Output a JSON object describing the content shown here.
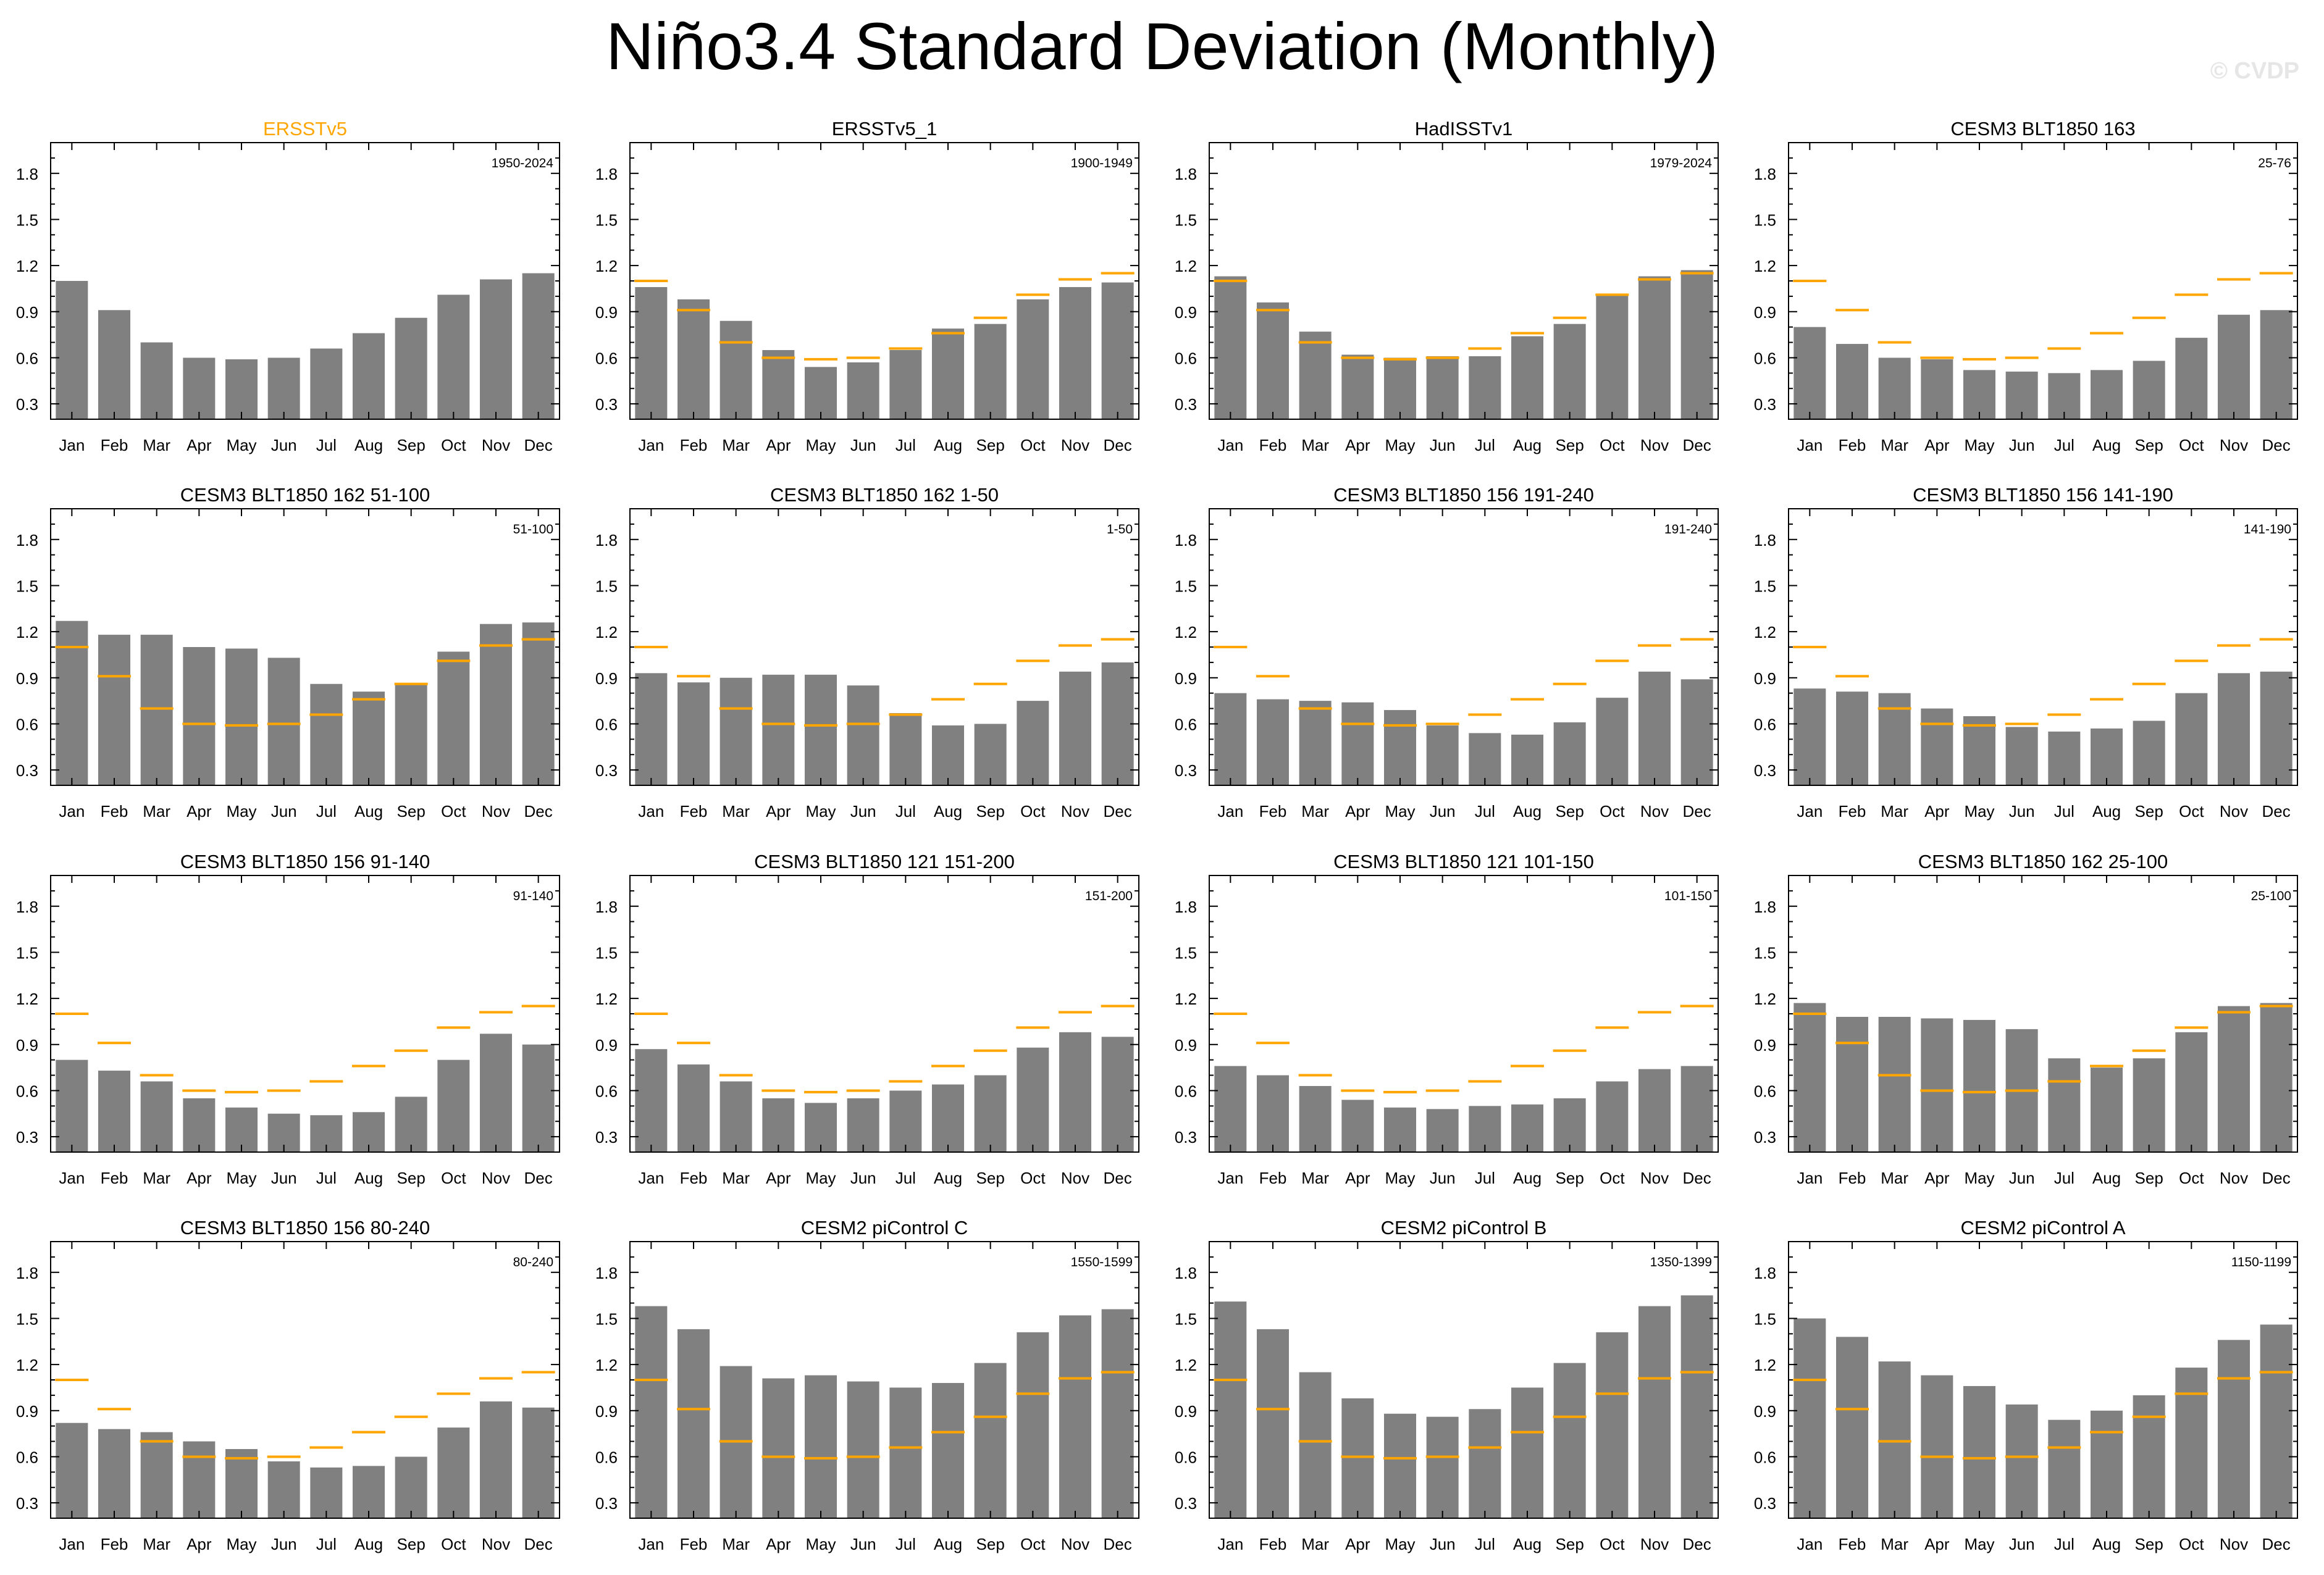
{
  "title": "Niño3.4 Standard Deviation (Monthly)",
  "watermark": "© CVDP",
  "colors": {
    "bar": "#808080",
    "reference_line": "#ffa500",
    "highlight_title": "#ffa500",
    "axis": "#000000"
  },
  "chart_data": [
    {
      "type": "bar",
      "title": "ERSSTv5",
      "title_highlight": true,
      "period": "1950-2024",
      "categories": [
        "Jan",
        "Feb",
        "Mar",
        "Apr",
        "May",
        "Jun",
        "Jul",
        "Aug",
        "Sep",
        "Oct",
        "Nov",
        "Dec"
      ],
      "yticks": [
        "0.3",
        "0.6",
        "0.9",
        "1.2",
        "1.5",
        "1.8"
      ],
      "ylim": [
        0.2,
        2.0
      ],
      "values": [
        1.1,
        0.91,
        0.7,
        0.6,
        0.59,
        0.6,
        0.66,
        0.76,
        0.86,
        1.01,
        1.11,
        1.15
      ],
      "reference": [
        1.1,
        0.91,
        0.7,
        0.6,
        0.59,
        0.6,
        0.66,
        0.76,
        0.86,
        1.01,
        1.11,
        1.15
      ],
      "show_reference": false
    },
    {
      "type": "bar",
      "title": "ERSSTv5_1",
      "title_highlight": false,
      "period": "1900-1949",
      "categories": [
        "Jan",
        "Feb",
        "Mar",
        "Apr",
        "May",
        "Jun",
        "Jul",
        "Aug",
        "Sep",
        "Oct",
        "Nov",
        "Dec"
      ],
      "yticks": [
        "0.3",
        "0.6",
        "0.9",
        "1.2",
        "1.5",
        "1.8"
      ],
      "ylim": [
        0.2,
        2.0
      ],
      "values": [
        1.06,
        0.98,
        0.84,
        0.65,
        0.54,
        0.57,
        0.65,
        0.79,
        0.82,
        0.98,
        1.06,
        1.09
      ],
      "reference": [
        1.1,
        0.91,
        0.7,
        0.6,
        0.59,
        0.6,
        0.66,
        0.76,
        0.86,
        1.01,
        1.11,
        1.15
      ],
      "show_reference": true
    },
    {
      "type": "bar",
      "title": "HadISSTv1",
      "title_highlight": false,
      "period": "1979-2024",
      "categories": [
        "Jan",
        "Feb",
        "Mar",
        "Apr",
        "May",
        "Jun",
        "Jul",
        "Aug",
        "Sep",
        "Oct",
        "Nov",
        "Dec"
      ],
      "yticks": [
        "0.3",
        "0.6",
        "0.9",
        "1.2",
        "1.5",
        "1.8"
      ],
      "ylim": [
        0.2,
        2.0
      ],
      "values": [
        1.13,
        0.96,
        0.77,
        0.62,
        0.6,
        0.61,
        0.61,
        0.74,
        0.82,
        1.01,
        1.13,
        1.17
      ],
      "reference": [
        1.1,
        0.91,
        0.7,
        0.6,
        0.59,
        0.6,
        0.66,
        0.76,
        0.86,
        1.01,
        1.11,
        1.15
      ],
      "show_reference": true
    },
    {
      "type": "bar",
      "title": "CESM3 BLT1850 163",
      "title_highlight": false,
      "period": "25-76",
      "categories": [
        "Jan",
        "Feb",
        "Mar",
        "Apr",
        "May",
        "Jun",
        "Jul",
        "Aug",
        "Sep",
        "Oct",
        "Nov",
        "Dec"
      ],
      "yticks": [
        "0.3",
        "0.6",
        "0.9",
        "1.2",
        "1.5",
        "1.8"
      ],
      "ylim": [
        0.2,
        2.0
      ],
      "values": [
        0.8,
        0.69,
        0.6,
        0.59,
        0.52,
        0.51,
        0.5,
        0.52,
        0.58,
        0.73,
        0.88,
        0.91
      ],
      "reference": [
        1.1,
        0.91,
        0.7,
        0.6,
        0.59,
        0.6,
        0.66,
        0.76,
        0.86,
        1.01,
        1.11,
        1.15
      ],
      "show_reference": true
    },
    {
      "type": "bar",
      "title": "CESM3 BLT1850 162 51-100",
      "title_highlight": false,
      "period": "51-100",
      "categories": [
        "Jan",
        "Feb",
        "Mar",
        "Apr",
        "May",
        "Jun",
        "Jul",
        "Aug",
        "Sep",
        "Oct",
        "Nov",
        "Dec"
      ],
      "yticks": [
        "0.3",
        "0.6",
        "0.9",
        "1.2",
        "1.5",
        "1.8"
      ],
      "ylim": [
        0.2,
        2.0
      ],
      "values": [
        1.27,
        1.18,
        1.18,
        1.1,
        1.09,
        1.03,
        0.86,
        0.81,
        0.86,
        1.07,
        1.25,
        1.26
      ],
      "reference": [
        1.1,
        0.91,
        0.7,
        0.6,
        0.59,
        0.6,
        0.66,
        0.76,
        0.86,
        1.01,
        1.11,
        1.15
      ],
      "show_reference": true
    },
    {
      "type": "bar",
      "title": "CESM3 BLT1850 162 1-50",
      "title_highlight": false,
      "period": "1-50",
      "categories": [
        "Jan",
        "Feb",
        "Mar",
        "Apr",
        "May",
        "Jun",
        "Jul",
        "Aug",
        "Sep",
        "Oct",
        "Nov",
        "Dec"
      ],
      "yticks": [
        "0.3",
        "0.6",
        "0.9",
        "1.2",
        "1.5",
        "1.8"
      ],
      "ylim": [
        0.2,
        2.0
      ],
      "values": [
        0.93,
        0.87,
        0.9,
        0.92,
        0.92,
        0.85,
        0.67,
        0.59,
        0.6,
        0.75,
        0.94,
        1.0
      ],
      "reference": [
        1.1,
        0.91,
        0.7,
        0.6,
        0.59,
        0.6,
        0.66,
        0.76,
        0.86,
        1.01,
        1.11,
        1.15
      ],
      "show_reference": true
    },
    {
      "type": "bar",
      "title": "CESM3 BLT1850 156 191-240",
      "title_highlight": false,
      "period": "191-240",
      "categories": [
        "Jan",
        "Feb",
        "Mar",
        "Apr",
        "May",
        "Jun",
        "Jul",
        "Aug",
        "Sep",
        "Oct",
        "Nov",
        "Dec"
      ],
      "yticks": [
        "0.3",
        "0.6",
        "0.9",
        "1.2",
        "1.5",
        "1.8"
      ],
      "ylim": [
        0.2,
        2.0
      ],
      "values": [
        0.8,
        0.76,
        0.75,
        0.74,
        0.69,
        0.59,
        0.54,
        0.53,
        0.61,
        0.77,
        0.94,
        0.89
      ],
      "reference": [
        1.1,
        0.91,
        0.7,
        0.6,
        0.59,
        0.6,
        0.66,
        0.76,
        0.86,
        1.01,
        1.11,
        1.15
      ],
      "show_reference": true
    },
    {
      "type": "bar",
      "title": "CESM3 BLT1850 156 141-190",
      "title_highlight": false,
      "period": "141-190",
      "categories": [
        "Jan",
        "Feb",
        "Mar",
        "Apr",
        "May",
        "Jun",
        "Jul",
        "Aug",
        "Sep",
        "Oct",
        "Nov",
        "Dec"
      ],
      "yticks": [
        "0.3",
        "0.6",
        "0.9",
        "1.2",
        "1.5",
        "1.8"
      ],
      "ylim": [
        0.2,
        2.0
      ],
      "values": [
        0.83,
        0.81,
        0.8,
        0.7,
        0.65,
        0.58,
        0.55,
        0.57,
        0.62,
        0.8,
        0.93,
        0.94
      ],
      "reference": [
        1.1,
        0.91,
        0.7,
        0.6,
        0.59,
        0.6,
        0.66,
        0.76,
        0.86,
        1.01,
        1.11,
        1.15
      ],
      "show_reference": true
    },
    {
      "type": "bar",
      "title": "CESM3 BLT1850 156 91-140",
      "title_highlight": false,
      "period": "91-140",
      "categories": [
        "Jan",
        "Feb",
        "Mar",
        "Apr",
        "May",
        "Jun",
        "Jul",
        "Aug",
        "Sep",
        "Oct",
        "Nov",
        "Dec"
      ],
      "yticks": [
        "0.3",
        "0.6",
        "0.9",
        "1.2",
        "1.5",
        "1.8"
      ],
      "ylim": [
        0.2,
        2.0
      ],
      "values": [
        0.8,
        0.73,
        0.66,
        0.55,
        0.49,
        0.45,
        0.44,
        0.46,
        0.56,
        0.8,
        0.97,
        0.9
      ],
      "reference": [
        1.1,
        0.91,
        0.7,
        0.6,
        0.59,
        0.6,
        0.66,
        0.76,
        0.86,
        1.01,
        1.11,
        1.15
      ],
      "show_reference": true
    },
    {
      "type": "bar",
      "title": "CESM3 BLT1850 121 151-200",
      "title_highlight": false,
      "period": "151-200",
      "categories": [
        "Jan",
        "Feb",
        "Mar",
        "Apr",
        "May",
        "Jun",
        "Jul",
        "Aug",
        "Sep",
        "Oct",
        "Nov",
        "Dec"
      ],
      "yticks": [
        "0.3",
        "0.6",
        "0.9",
        "1.2",
        "1.5",
        "1.8"
      ],
      "ylim": [
        0.2,
        2.0
      ],
      "values": [
        0.87,
        0.77,
        0.66,
        0.55,
        0.52,
        0.55,
        0.6,
        0.64,
        0.7,
        0.88,
        0.98,
        0.95
      ],
      "reference": [
        1.1,
        0.91,
        0.7,
        0.6,
        0.59,
        0.6,
        0.66,
        0.76,
        0.86,
        1.01,
        1.11,
        1.15
      ],
      "show_reference": true
    },
    {
      "type": "bar",
      "title": "CESM3 BLT1850 121 101-150",
      "title_highlight": false,
      "period": "101-150",
      "categories": [
        "Jan",
        "Feb",
        "Mar",
        "Apr",
        "May",
        "Jun",
        "Jul",
        "Aug",
        "Sep",
        "Oct",
        "Nov",
        "Dec"
      ],
      "yticks": [
        "0.3",
        "0.6",
        "0.9",
        "1.2",
        "1.5",
        "1.8"
      ],
      "ylim": [
        0.2,
        2.0
      ],
      "values": [
        0.76,
        0.7,
        0.63,
        0.54,
        0.49,
        0.48,
        0.5,
        0.51,
        0.55,
        0.66,
        0.74,
        0.76
      ],
      "reference": [
        1.1,
        0.91,
        0.7,
        0.6,
        0.59,
        0.6,
        0.66,
        0.76,
        0.86,
        1.01,
        1.11,
        1.15
      ],
      "show_reference": true
    },
    {
      "type": "bar",
      "title": "CESM3 BLT1850 162 25-100",
      "title_highlight": false,
      "period": "25-100",
      "categories": [
        "Jan",
        "Feb",
        "Mar",
        "Apr",
        "May",
        "Jun",
        "Jul",
        "Aug",
        "Sep",
        "Oct",
        "Nov",
        "Dec"
      ],
      "yticks": [
        "0.3",
        "0.6",
        "0.9",
        "1.2",
        "1.5",
        "1.8"
      ],
      "ylim": [
        0.2,
        2.0
      ],
      "values": [
        1.17,
        1.08,
        1.08,
        1.07,
        1.06,
        1.0,
        0.81,
        0.75,
        0.81,
        0.98,
        1.15,
        1.17
      ],
      "reference": [
        1.1,
        0.91,
        0.7,
        0.6,
        0.59,
        0.6,
        0.66,
        0.76,
        0.86,
        1.01,
        1.11,
        1.15
      ],
      "show_reference": true
    },
    {
      "type": "bar",
      "title": "CESM3 BLT1850 156 80-240",
      "title_highlight": false,
      "period": "80-240",
      "categories": [
        "Jan",
        "Feb",
        "Mar",
        "Apr",
        "May",
        "Jun",
        "Jul",
        "Aug",
        "Sep",
        "Oct",
        "Nov",
        "Dec"
      ],
      "yticks": [
        "0.3",
        "0.6",
        "0.9",
        "1.2",
        "1.5",
        "1.8"
      ],
      "ylim": [
        0.2,
        2.0
      ],
      "values": [
        0.82,
        0.78,
        0.76,
        0.7,
        0.65,
        0.57,
        0.53,
        0.54,
        0.6,
        0.79,
        0.96,
        0.92
      ],
      "reference": [
        1.1,
        0.91,
        0.7,
        0.6,
        0.59,
        0.6,
        0.66,
        0.76,
        0.86,
        1.01,
        1.11,
        1.15
      ],
      "show_reference": true
    },
    {
      "type": "bar",
      "title": "CESM2 piControl C",
      "title_highlight": false,
      "period": "1550-1599",
      "categories": [
        "Jan",
        "Feb",
        "Mar",
        "Apr",
        "May",
        "Jun",
        "Jul",
        "Aug",
        "Sep",
        "Oct",
        "Nov",
        "Dec"
      ],
      "yticks": [
        "0.3",
        "0.6",
        "0.9",
        "1.2",
        "1.5",
        "1.8"
      ],
      "ylim": [
        0.2,
        2.0
      ],
      "values": [
        1.58,
        1.43,
        1.19,
        1.11,
        1.13,
        1.09,
        1.05,
        1.08,
        1.21,
        1.41,
        1.52,
        1.56
      ],
      "reference": [
        1.1,
        0.91,
        0.7,
        0.6,
        0.59,
        0.6,
        0.66,
        0.76,
        0.86,
        1.01,
        1.11,
        1.15
      ],
      "show_reference": true
    },
    {
      "type": "bar",
      "title": "CESM2 piControl B",
      "title_highlight": false,
      "period": "1350-1399",
      "categories": [
        "Jan",
        "Feb",
        "Mar",
        "Apr",
        "May",
        "Jun",
        "Jul",
        "Aug",
        "Sep",
        "Oct",
        "Nov",
        "Dec"
      ],
      "yticks": [
        "0.3",
        "0.6",
        "0.9",
        "1.2",
        "1.5",
        "1.8"
      ],
      "ylim": [
        0.2,
        2.0
      ],
      "values": [
        1.61,
        1.43,
        1.15,
        0.98,
        0.88,
        0.86,
        0.91,
        1.05,
        1.21,
        1.41,
        1.58,
        1.65
      ],
      "reference": [
        1.1,
        0.91,
        0.7,
        0.6,
        0.59,
        0.6,
        0.66,
        0.76,
        0.86,
        1.01,
        1.11,
        1.15
      ],
      "show_reference": true
    },
    {
      "type": "bar",
      "title": "CESM2 piControl A",
      "title_highlight": false,
      "period": "1150-1199",
      "categories": [
        "Jan",
        "Feb",
        "Mar",
        "Apr",
        "May",
        "Jun",
        "Jul",
        "Aug",
        "Sep",
        "Oct",
        "Nov",
        "Dec"
      ],
      "yticks": [
        "0.3",
        "0.6",
        "0.9",
        "1.2",
        "1.5",
        "1.8"
      ],
      "ylim": [
        0.2,
        2.0
      ],
      "values": [
        1.5,
        1.38,
        1.22,
        1.13,
        1.06,
        0.94,
        0.84,
        0.9,
        1.0,
        1.18,
        1.36,
        1.46
      ],
      "reference": [
        1.1,
        0.91,
        0.7,
        0.6,
        0.59,
        0.6,
        0.66,
        0.76,
        0.86,
        1.01,
        1.11,
        1.15
      ],
      "show_reference": true
    }
  ]
}
